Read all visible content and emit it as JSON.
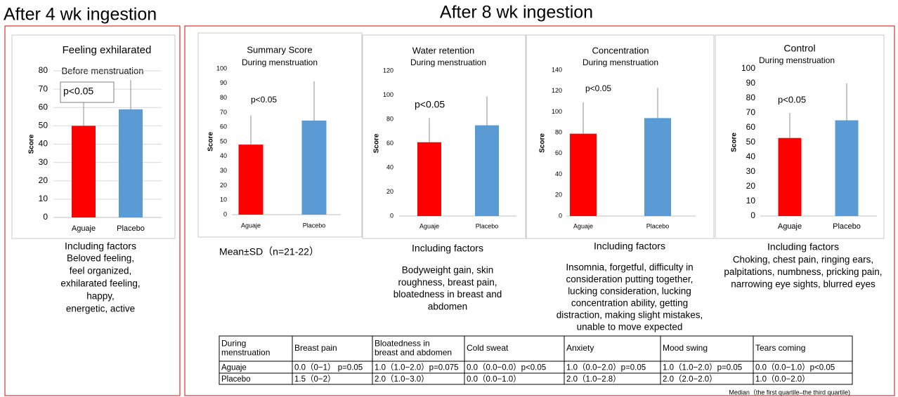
{
  "headings": [
    "After 4 wk ingestion",
    "After 8 wk ingestion"
  ],
  "chart_data": [
    {
      "type": "bar",
      "title": "Feeling exhilarated",
      "subtitle": "Before menstruation",
      "ylabel": "Score",
      "categories": [
        "Aguaje",
        "Placebo"
      ],
      "values": [
        50,
        59
      ],
      "errors": [
        13,
        16
      ],
      "colors": [
        "#ff0000",
        "#5b9bd5"
      ],
      "ylim": [
        0,
        80
      ],
      "yticks": [
        0,
        10,
        20,
        30,
        40,
        50,
        60,
        70,
        80
      ],
      "grid": true,
      "annotation": "p<0.05"
    },
    {
      "type": "bar",
      "title": "Summary Score",
      "subtitle": "During menstruation",
      "ylabel": "Score",
      "categories": [
        "Aguaje",
        "Placebo"
      ],
      "values": [
        48,
        64.5
      ],
      "errors": [
        20,
        27
      ],
      "colors": [
        "#ff0000",
        "#5b9bd5"
      ],
      "ylim": [
        0,
        100
      ],
      "yticks": [
        0,
        10,
        20,
        30,
        40,
        50,
        60,
        70,
        80,
        90,
        100
      ],
      "grid": false,
      "annotation": "p<0.05"
    },
    {
      "type": "bar",
      "title": "Water  retention",
      "subtitle": "During menstruation",
      "ylabel": "Score",
      "categories": [
        "Aguaje",
        "Placebo"
      ],
      "values": [
        61,
        75
      ],
      "errors": [
        20,
        24
      ],
      "colors": [
        "#ff0000",
        "#5b9bd5"
      ],
      "ylim": [
        0,
        120
      ],
      "yticks": [
        0,
        20,
        40,
        60,
        80,
        100,
        120
      ],
      "grid": false,
      "annotation": "p<0.05"
    },
    {
      "type": "bar",
      "title": "Concentration",
      "subtitle": "During menstruation",
      "ylabel": "Score",
      "categories": [
        "Aguaje",
        "Placebo"
      ],
      "values": [
        79,
        94
      ],
      "errors": [
        30,
        29
      ],
      "colors": [
        "#ff0000",
        "#5b9bd5"
      ],
      "ylim": [
        0,
        140
      ],
      "yticks": [
        0,
        20,
        40,
        60,
        80,
        100,
        120,
        140
      ],
      "grid": false,
      "annotation": "p<0.05"
    },
    {
      "type": "bar",
      "title": "Control",
      "subtitle": "During menstruation",
      "ylabel": "Score",
      "categories": [
        "Aguaje",
        "Placebo"
      ],
      "values": [
        53,
        65
      ],
      "errors": [
        17,
        25
      ],
      "colors": [
        "#ff0000",
        "#5b9bd5"
      ],
      "ylim": [
        0,
        100
      ],
      "yticks": [
        0,
        10,
        20,
        30,
        40,
        50,
        60,
        70,
        80,
        90,
        100
      ],
      "grid": false,
      "annotation": "p<0.05"
    }
  ],
  "note": "Mean±SD（n=21-22）",
  "factors": [
    {
      "title": "Including factors",
      "lines": [
        "Beloved feeling,",
        "feel organized,",
        "exhilarated feeling,",
        "happy,",
        "energetic, active"
      ]
    },
    {
      "title": "Including factors",
      "lines": [
        "Bodyweight gain, skin",
        "roughness,  breast pain,",
        "bloatedness in breast and",
        "abdomen"
      ]
    },
    {
      "title": "Including factors",
      "lines": [
        "Insomnia,  forgetful,  difficulty in",
        "consideration putting together,",
        "lucking consideration,  lucking",
        "concentration ability,  getting",
        "distraction,  making slight mistakes,",
        "unable to move expected"
      ]
    },
    {
      "title": "Including factors",
      "lines": [
        "Choking,  chest pain,  ringing ears,",
        "palpitations,  numbness,  pricking pain,",
        "narrowing eye sights,  blurred eyes"
      ]
    }
  ],
  "table": {
    "header": [
      [
        "During",
        "menstruation"
      ],
      [
        "Breast pain"
      ],
      [
        "Bloatedness in",
        "breast and abdomen"
      ],
      [
        "Cold sweat"
      ],
      [
        "Anxiety"
      ],
      [
        "Mood swing"
      ],
      [
        "Tears coming"
      ]
    ],
    "rows": [
      [
        "Aguaje",
        "0.0（0−1） p=0.05",
        "1.0（1.0−2.0）p=0.075",
        "0.0（0.0−0.0）p<0.05",
        "1.0（0.0−2.0）p=0.05",
        "1.0（1.0−2.0）p=0.05",
        "0.0（0.0−1.0）p<0.05"
      ],
      [
        "Placebo",
        "1.5（0−2）",
        "2.0（1.0−3.0）",
        "0.0（0.0−1.0）",
        "2.0（1.0−2.8）",
        "2.0（2.0−2.0）",
        "1.0（0.0−2.0）"
      ]
    ],
    "note": "Median（the first quartile–the third quartile)"
  }
}
